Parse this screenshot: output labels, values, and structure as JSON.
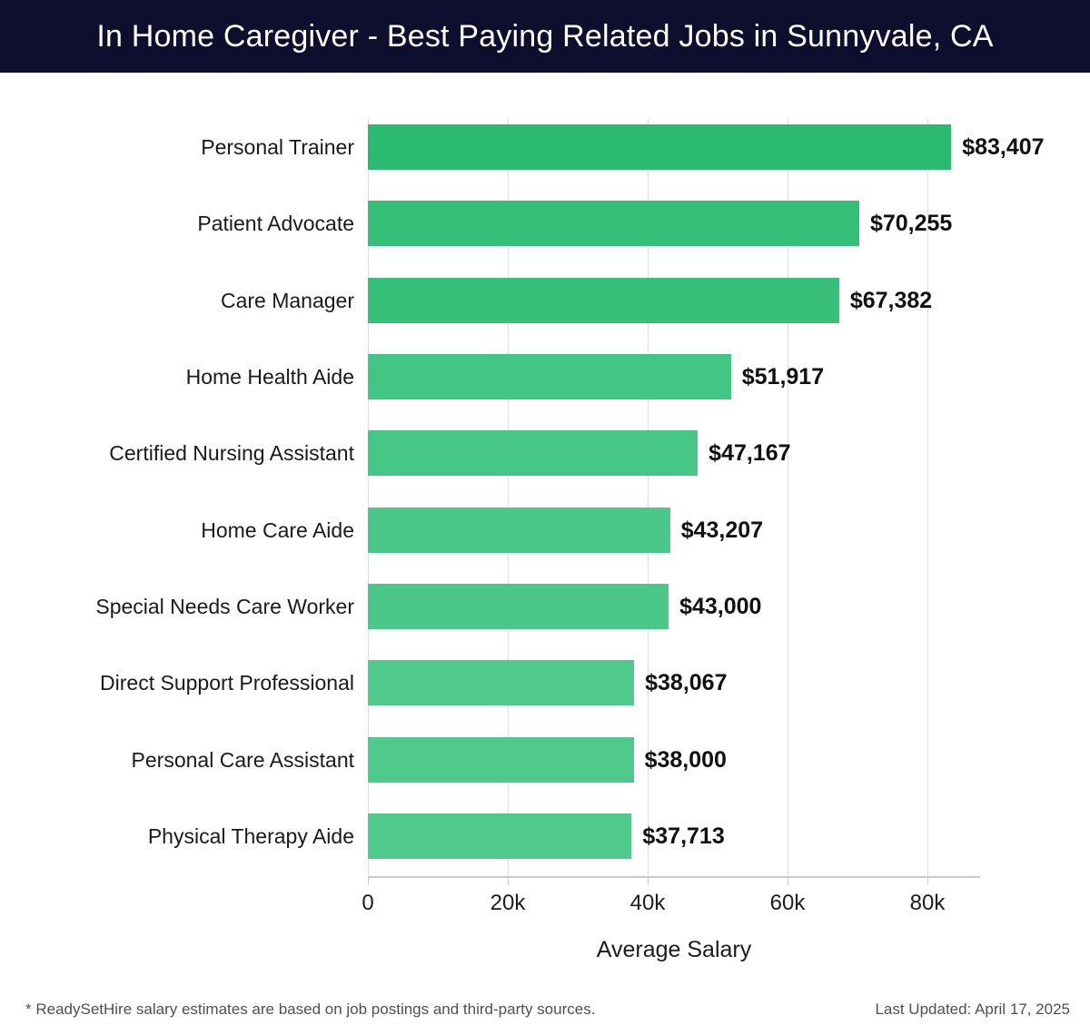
{
  "header": {
    "title": "In Home Caregiver - Best Paying Related Jobs in Sunnyvale, CA",
    "bg_color": "#0e0e2e",
    "text_color": "#ffffff"
  },
  "chart_data": {
    "type": "bar",
    "orientation": "horizontal",
    "title": "In Home Caregiver - Best Paying Related Jobs in Sunnyvale, CA",
    "xlabel": "Average Salary",
    "ylabel": "",
    "xlim": [
      0,
      87500
    ],
    "grid": "vertical",
    "categories": [
      "Personal Trainer",
      "Patient Advocate",
      "Care Manager",
      "Home Health Aide",
      "Certified Nursing Assistant",
      "Home Care Aide",
      "Special Needs Care Worker",
      "Direct Support Professional",
      "Personal Care Assistant",
      "Physical Therapy Aide"
    ],
    "values": [
      83407,
      70255,
      67382,
      51917,
      47167,
      43207,
      43000,
      38067,
      38000,
      37713
    ],
    "value_labels": [
      "$83,407",
      "$70,255",
      "$67,382",
      "$51,917",
      "$47,167",
      "$43,207",
      "$43,000",
      "$38,067",
      "$38,000",
      "$37,713"
    ],
    "bar_colors": [
      "#2abb71",
      "#35bf79",
      "#37c07a",
      "#43c584",
      "#47c786",
      "#4bc889",
      "#4bc889",
      "#4fca8c",
      "#4fca8c",
      "#4fca8c"
    ],
    "x_ticks": [
      {
        "value": 0,
        "label": "0"
      },
      {
        "value": 20000,
        "label": "20k"
      },
      {
        "value": 40000,
        "label": "40k"
      },
      {
        "value": 60000,
        "label": "60k"
      },
      {
        "value": 80000,
        "label": "80k"
      }
    ],
    "gridline_color": "#dedede",
    "axis_color": "#c9c9c9"
  },
  "footer": {
    "note": "* ReadySetHire salary estimates are based on job postings and third-party sources.",
    "last_updated": "Last Updated: April 17, 2025"
  }
}
